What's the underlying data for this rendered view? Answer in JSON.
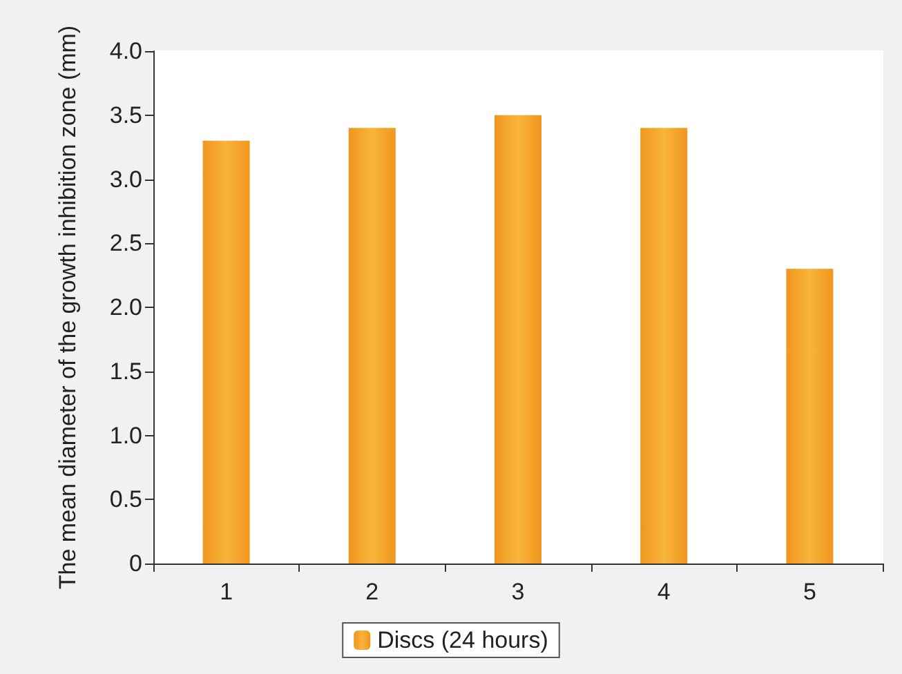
{
  "chart_data": {
    "type": "bar",
    "ylabel": "The mean diameter of the growth inhibition zone (mm)",
    "categories": [
      "1",
      "2",
      "3",
      "4",
      "5"
    ],
    "series": [
      {
        "name": "Discs (24 hours)",
        "color": "#f0961e",
        "values": [
          3.3,
          3.4,
          3.5,
          3.4,
          2.3
        ]
      }
    ],
    "ylim": [
      0,
      4
    ],
    "yticks": [
      0,
      0.5,
      {
        "value": 1,
        "label": "1.0"
      },
      1.5,
      {
        "value": 2,
        "label": "2.0"
      },
      2.5,
      {
        "value": 3,
        "label": "3.0"
      },
      3.5,
      {
        "value": 4,
        "label": "4.0"
      }
    ],
    "grid": false,
    "legend": "bottom"
  }
}
